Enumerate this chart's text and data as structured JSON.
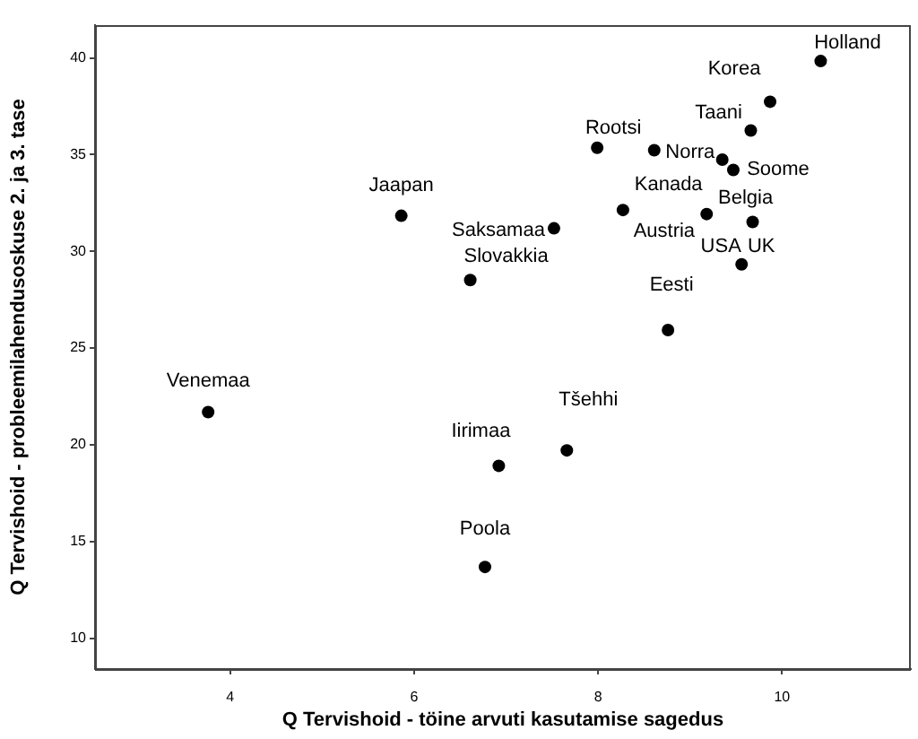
{
  "chart_data": {
    "type": "scatter",
    "xlabel": "Q Tervishoid - töine arvuti kasutamise sagedus",
    "ylabel": "Q Tervishoid - probleemilahendusoskuse 2. ja 3. tase",
    "x": [
      10.42,
      9.87,
      9.66,
      7.99,
      8.61,
      9.47,
      8.27,
      9.68,
      9.18,
      9.56,
      9.35,
      8.76,
      5.86,
      7.52,
      6.61,
      3.76,
      7.66,
      6.92,
      6.77
    ],
    "values": [
      39.84,
      37.74,
      36.25,
      35.36,
      35.23,
      34.21,
      32.14,
      31.52,
      31.93,
      29.33,
      34.74,
      25.93,
      31.84,
      31.19,
      28.52,
      21.69,
      19.71,
      18.91,
      13.68
    ],
    "color": "#000000",
    "marker": "circle",
    "grid": false,
    "legend": false,
    "xlim": [
      2.53,
      11.4
    ],
    "ylim": [
      8.4,
      41.7
    ],
    "xticks": [
      4,
      6,
      8,
      10
    ],
    "yticks": [
      10,
      15,
      20,
      25,
      30,
      35,
      40
    ],
    "annotations": [
      {
        "text": "Holland",
        "x": 10.42,
        "y": 39.84
      },
      {
        "text": "Korea",
        "x": 9.87,
        "y": 37.74
      },
      {
        "text": "Taani",
        "x": 9.66,
        "y": 36.25
      },
      {
        "text": "Rootsi",
        "x": 7.99,
        "y": 35.36
      },
      {
        "text": "Norra",
        "x": 8.61,
        "y": 35.23
      },
      {
        "text": "Soome",
        "x": 9.47,
        "y": 34.21
      },
      {
        "text": "Kanada",
        "x": 9.35,
        "y": 34.74
      },
      {
        "text": "Belgia",
        "x": 9.68,
        "y": 31.52
      },
      {
        "text": "Austria",
        "x": 8.27,
        "y": 32.14
      },
      {
        "text": "USA",
        "x": 9.18,
        "y": 31.93
      },
      {
        "text": "UK",
        "x": 9.56,
        "y": 29.33
      },
      {
        "text": "Eesti",
        "x": 8.76,
        "y": 25.93
      },
      {
        "text": "Jaapan",
        "x": 5.86,
        "y": 31.84
      },
      {
        "text": "Saksamaa",
        "x": 7.52,
        "y": 31.19
      },
      {
        "text": "Slovakkia",
        "x": 6.61,
        "y": 28.52
      },
      {
        "text": "Venemaa",
        "x": 3.76,
        "y": 21.69
      },
      {
        "text": "Tšehhi",
        "x": 7.66,
        "y": 19.71
      },
      {
        "text": "Iirimaa",
        "x": 6.92,
        "y": 18.91
      },
      {
        "text": "Poola",
        "x": 6.77,
        "y": 13.68
      }
    ]
  }
}
